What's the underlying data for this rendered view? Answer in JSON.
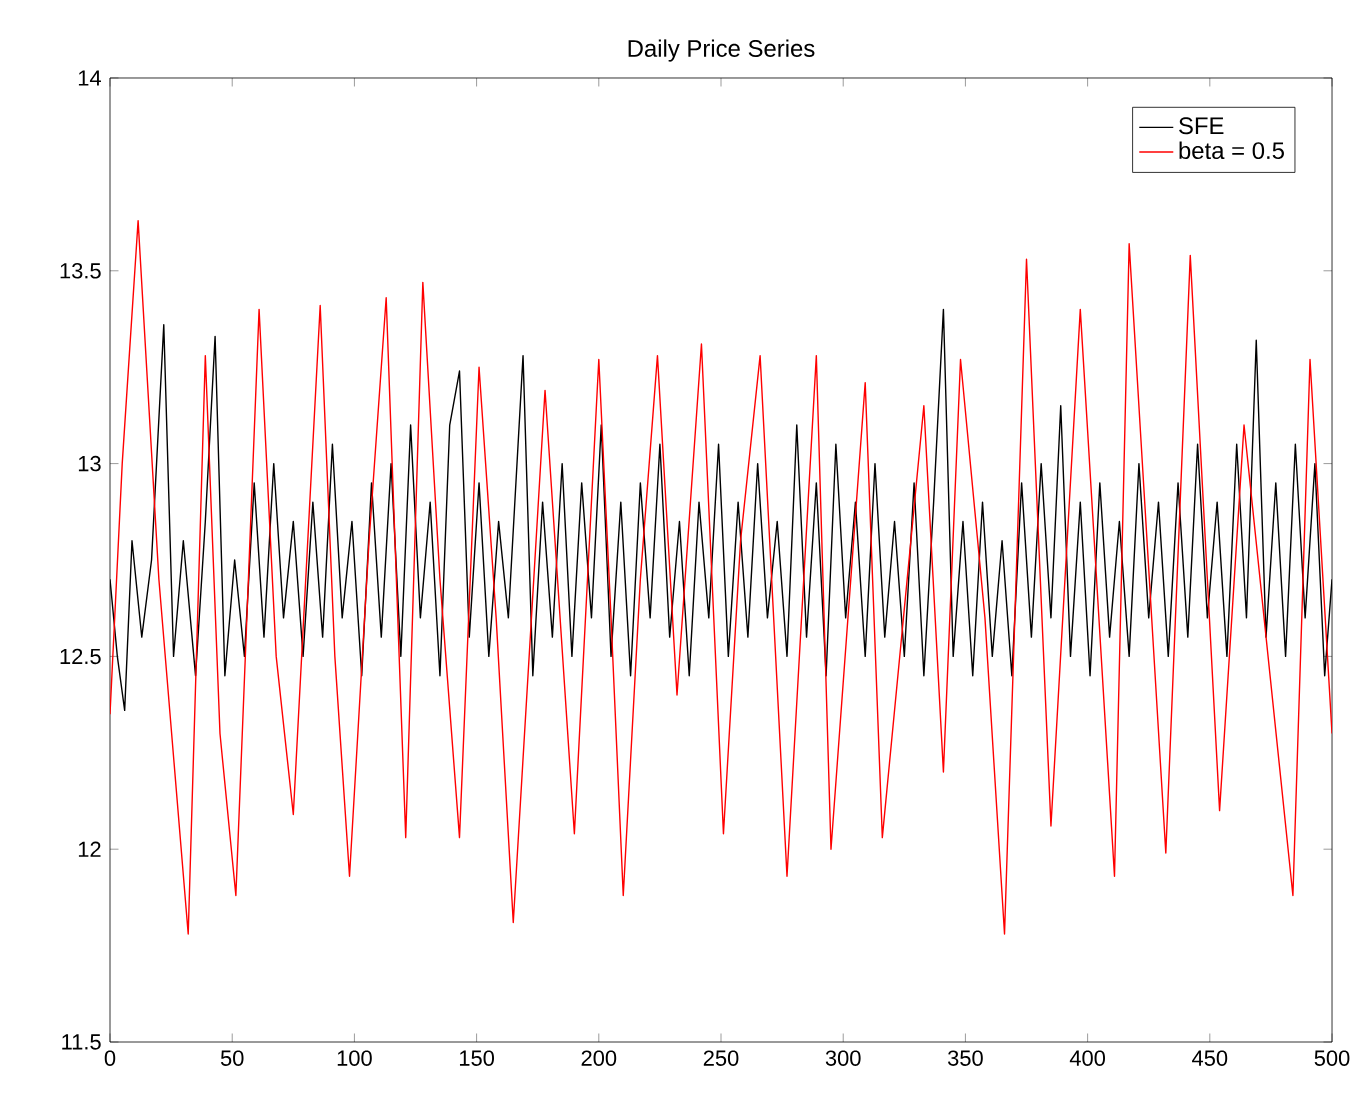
{
  "chart_data": {
    "type": "line",
    "title": "Daily Price Series",
    "xlim": [
      0,
      500
    ],
    "ylim": [
      11.5,
      14
    ],
    "xticks": [
      0,
      50,
      100,
      150,
      200,
      250,
      300,
      350,
      400,
      450,
      500
    ],
    "yticks": [
      11.5,
      12,
      12.5,
      13,
      13.5,
      14
    ],
    "legend": "top right",
    "marker": "none",
    "line_style": "solid",
    "series": [
      {
        "name": "SFE",
        "color": "#000000",
        "x": [
          0,
          3,
          6,
          9,
          13,
          17,
          22,
          26,
          30,
          35,
          39,
          43,
          47,
          51,
          55,
          59,
          63,
          67,
          71,
          75,
          79,
          83,
          87,
          91,
          95,
          99,
          103,
          107,
          111,
          115,
          119,
          123,
          127,
          131,
          135,
          139,
          143,
          147,
          151,
          155,
          159,
          163,
          169,
          173,
          177,
          181,
          185,
          189,
          193,
          197,
          201,
          205,
          209,
          213,
          217,
          221,
          225,
          229,
          233,
          237,
          241,
          245,
          249,
          253,
          257,
          261,
          265,
          269,
          273,
          277,
          281,
          285,
          289,
          293,
          297,
          301,
          305,
          309,
          313,
          317,
          321,
          325,
          329,
          333,
          337,
          341,
          345,
          349,
          353,
          357,
          361,
          365,
          369,
          373,
          377,
          381,
          385,
          389,
          393,
          397,
          401,
          405,
          409,
          413,
          417,
          421,
          425,
          429,
          433,
          437,
          441,
          445,
          449,
          453,
          457,
          461,
          465,
          469,
          473,
          477,
          481,
          485,
          489,
          493,
          497,
          500
        ],
        "values": [
          12.7,
          12.5,
          12.36,
          12.8,
          12.55,
          12.75,
          13.36,
          12.5,
          12.8,
          12.45,
          12.85,
          13.33,
          12.45,
          12.75,
          12.5,
          12.95,
          12.55,
          13.0,
          12.6,
          12.85,
          12.5,
          12.9,
          12.55,
          13.05,
          12.6,
          12.85,
          12.45,
          12.95,
          12.55,
          13.0,
          12.5,
          13.1,
          12.6,
          12.9,
          12.45,
          13.1,
          13.24,
          12.55,
          12.95,
          12.5,
          12.85,
          12.6,
          13.28,
          12.45,
          12.9,
          12.55,
          13.0,
          12.5,
          12.95,
          12.6,
          13.1,
          12.5,
          12.9,
          12.45,
          12.95,
          12.6,
          13.05,
          12.55,
          12.85,
          12.45,
          12.9,
          12.6,
          13.05,
          12.5,
          12.9,
          12.55,
          13.0,
          12.6,
          12.85,
          12.5,
          13.1,
          12.55,
          12.95,
          12.45,
          13.05,
          12.6,
          12.9,
          12.5,
          13.0,
          12.55,
          12.85,
          12.5,
          12.95,
          12.45,
          12.9,
          13.4,
          12.5,
          12.85,
          12.45,
          12.9,
          12.5,
          12.8,
          12.45,
          12.95,
          12.55,
          13.0,
          12.6,
          13.15,
          12.5,
          12.9,
          12.45,
          12.95,
          12.55,
          12.85,
          12.5,
          13.0,
          12.6,
          12.9,
          12.5,
          12.95,
          12.55,
          13.05,
          12.6,
          12.9,
          12.5,
          13.05,
          12.6,
          13.32,
          12.55,
          12.95,
          12.5,
          13.05,
          12.6,
          13.0,
          12.45,
          12.7
        ]
      },
      {
        "name": "beta = 0.5",
        "color": "#ff0000",
        "x": [
          0,
          5,
          11.5,
          20,
          32,
          39,
          45,
          51.5,
          61,
          68,
          75,
          86,
          92,
          98,
          106,
          113,
          121,
          128,
          135,
          143,
          151,
          158,
          165,
          178,
          190,
          200,
          205,
          210,
          217,
          224,
          232,
          242,
          251,
          258,
          266,
          277,
          289,
          295,
          309,
          316,
          333,
          341,
          348,
          358,
          366,
          375,
          385,
          397,
          411,
          417,
          432,
          442,
          454,
          464,
          484,
          491,
          500
        ],
        "values": [
          12.35,
          13.0,
          13.63,
          12.7,
          11.78,
          13.28,
          12.3,
          11.88,
          13.4,
          12.5,
          12.09,
          13.41,
          12.5,
          11.93,
          12.8,
          13.43,
          12.03,
          13.47,
          12.7,
          12.03,
          13.25,
          12.6,
          11.81,
          13.19,
          12.04,
          13.27,
          12.6,
          11.88,
          12.7,
          13.28,
          12.4,
          13.31,
          12.04,
          12.8,
          13.28,
          11.93,
          13.28,
          12.0,
          13.21,
          12.03,
          13.15,
          12.2,
          13.27,
          12.6,
          11.78,
          13.53,
          12.06,
          13.4,
          11.93,
          13.57,
          11.99,
          13.54,
          12.1,
          13.1,
          11.88,
          13.27,
          12.3
        ]
      }
    ]
  }
}
